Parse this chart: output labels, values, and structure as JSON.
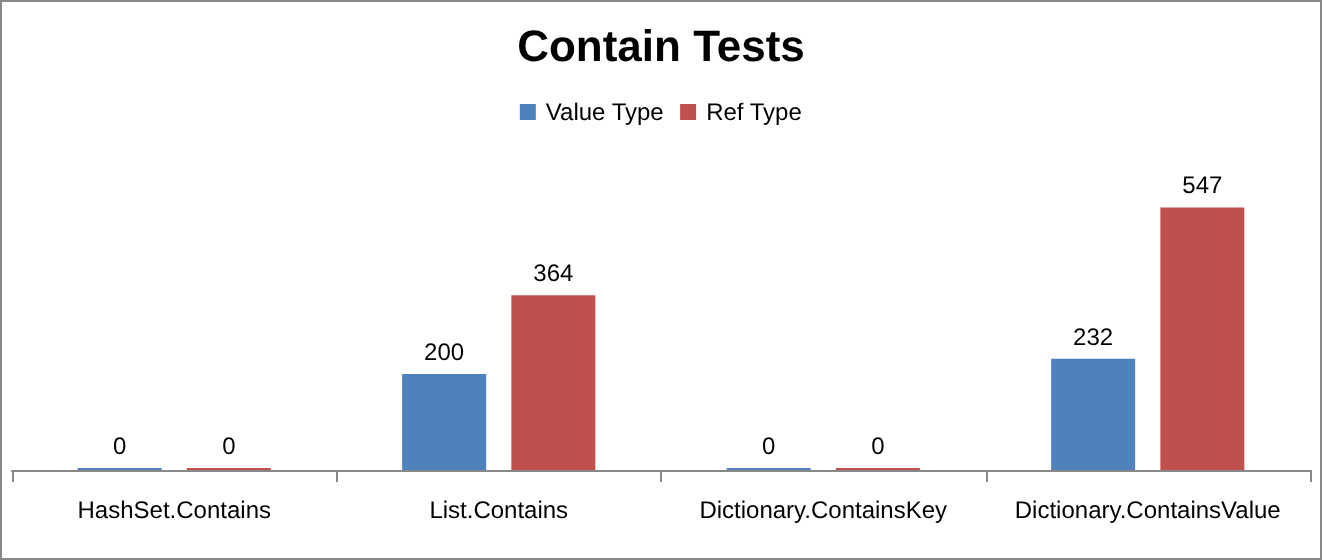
{
  "chart_data": {
    "type": "bar",
    "title": "Contain Tests",
    "categories": [
      "HashSet.Contains",
      "List.Contains",
      "Dictionary.ContainsKey",
      "Dictionary.ContainsValue"
    ],
    "series": [
      {
        "name": "Value Type",
        "color": "#4f81bd",
        "values": [
          0,
          200,
          0,
          232
        ]
      },
      {
        "name": "Ref Type",
        "color": "#c0504d",
        "values": [
          0,
          364,
          0,
          547
        ]
      }
    ],
    "data_labels": true,
    "legend": "top"
  }
}
